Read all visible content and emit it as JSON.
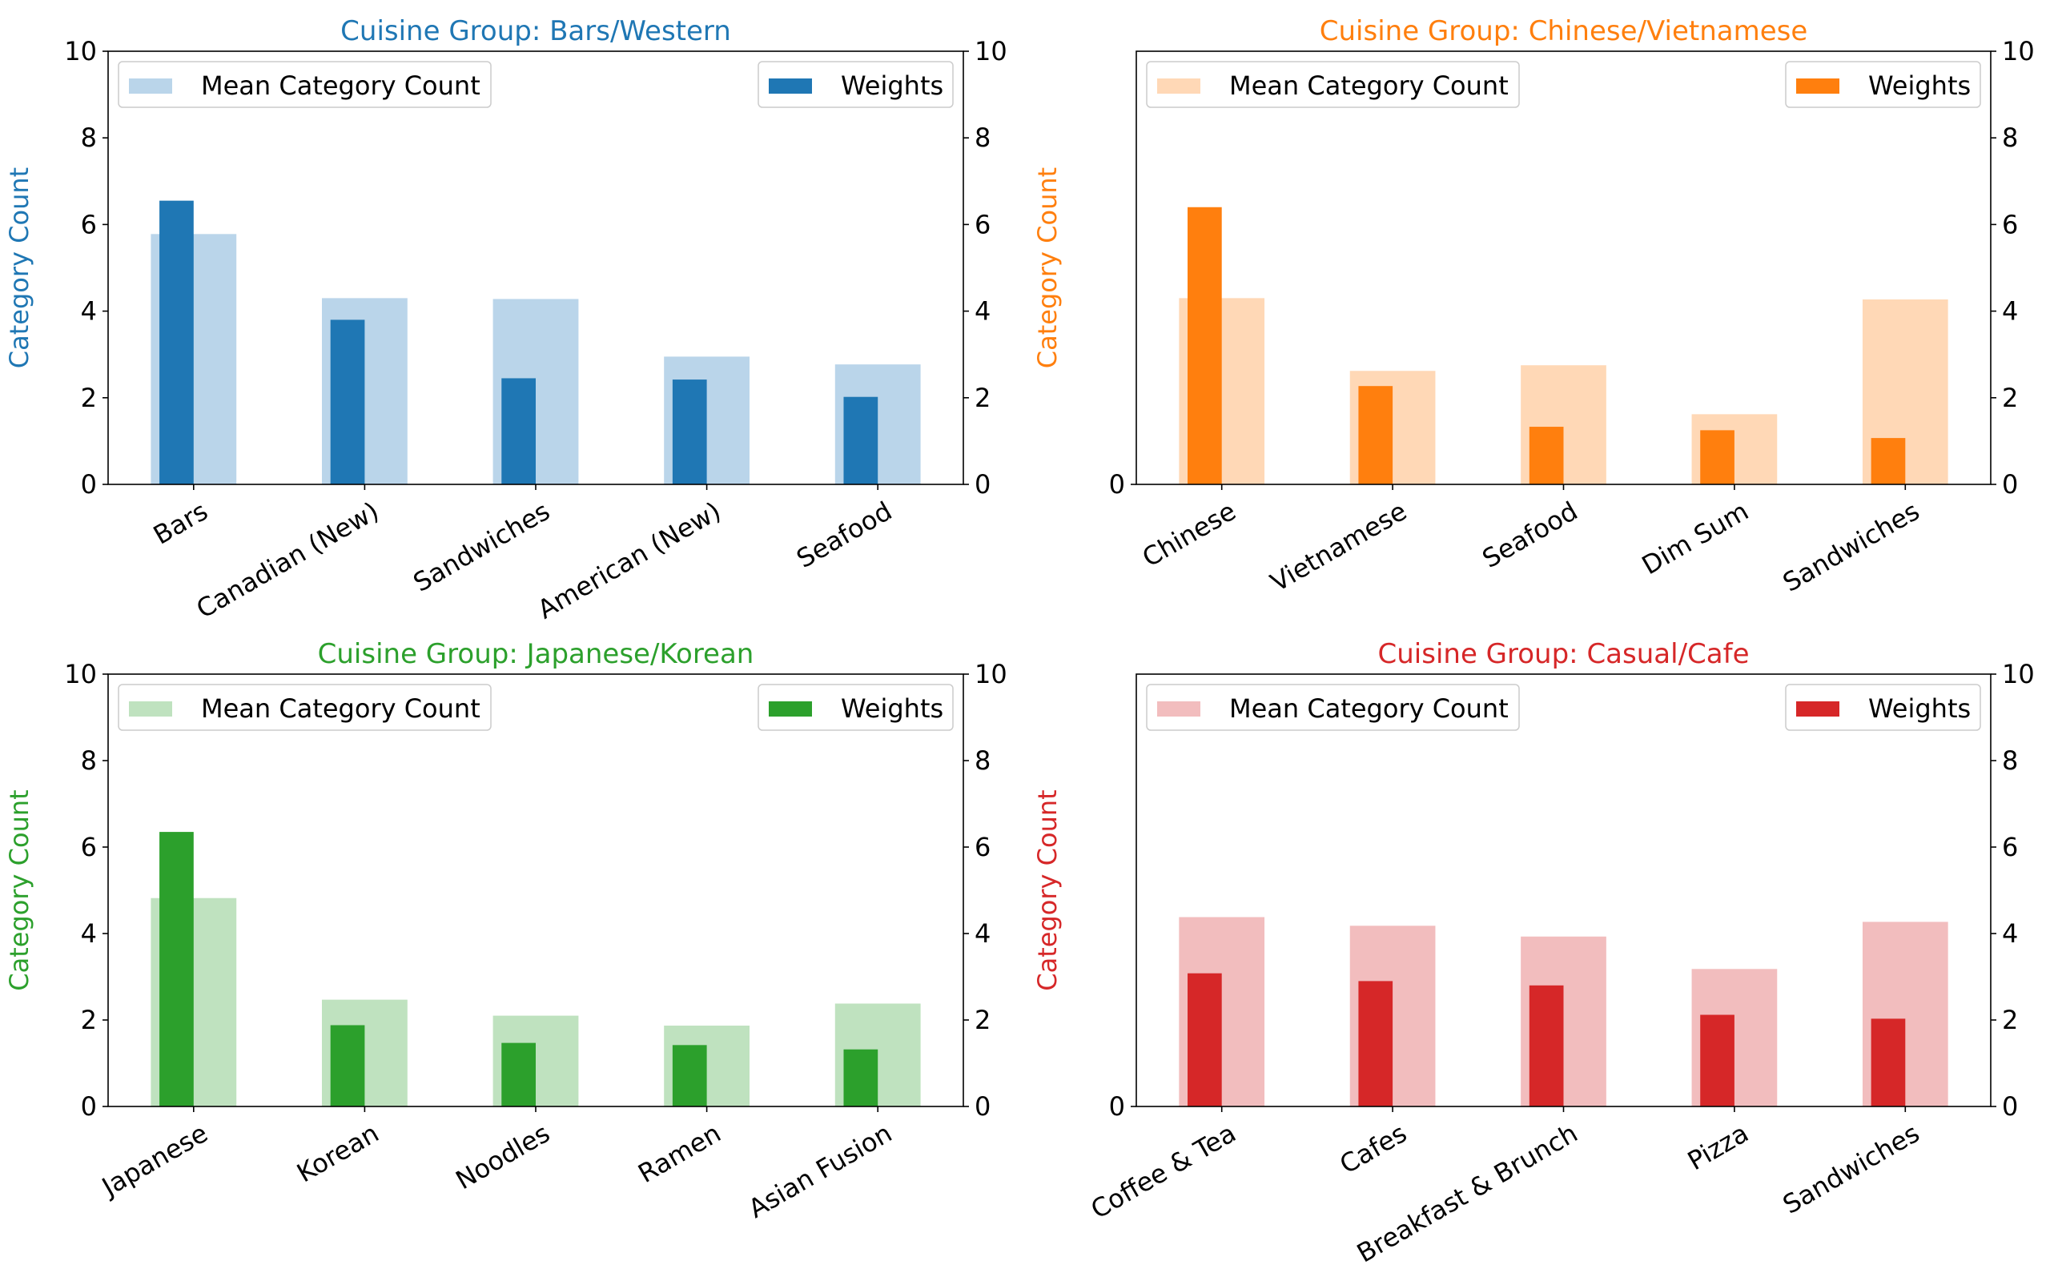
{
  "chart_data": [
    {
      "type": "bar",
      "title": "Cuisine Group: Bars/Western",
      "color": "#1f77b4",
      "light_color": "#bad5ea",
      "ylabel": "Category Count",
      "ylim": [
        0,
        10
      ],
      "yticks": [
        0,
        2,
        4,
        6,
        8,
        10
      ],
      "left_ticks_shown": true,
      "categories": [
        "Bars",
        "Canadian (New)",
        "Sandwiches",
        "American (New)",
        "Seafood"
      ],
      "series": [
        {
          "name": "Mean Category Count",
          "values": [
            5.78,
            4.3,
            4.28,
            2.95,
            2.77
          ]
        },
        {
          "name": "Weights",
          "values": [
            6.55,
            3.8,
            2.45,
            2.42,
            2.02
          ]
        }
      ],
      "legend": {
        "left": "top-left",
        "right": "top-right"
      },
      "grid": false
    },
    {
      "type": "bar",
      "title": "Cuisine Group: Chinese/Vietnamese",
      "color": "#ff7f0e",
      "light_color": "#ffd8b6",
      "ylabel": "Category Count",
      "ylim": [
        0,
        10
      ],
      "yticks": [
        0,
        2,
        4,
        6,
        8,
        10
      ],
      "left_ticks_shown": false,
      "categories": [
        "Chinese",
        "Vietnamese",
        "Seafood",
        "Dim Sum",
        "Sandwiches"
      ],
      "series": [
        {
          "name": "Mean Category Count",
          "values": [
            4.3,
            2.62,
            2.75,
            1.62,
            4.27
          ]
        },
        {
          "name": "Weights",
          "values": [
            6.4,
            2.27,
            1.33,
            1.25,
            1.07
          ]
        }
      ],
      "legend": {
        "left": "top-left",
        "right": "top-right"
      },
      "grid": false
    },
    {
      "type": "bar",
      "title": "Cuisine Group: Japanese/Korean",
      "color": "#2ca02c",
      "light_color": "#bfe2bf",
      "ylabel": "Category Count",
      "ylim": [
        0,
        10
      ],
      "yticks": [
        0,
        2,
        4,
        6,
        8,
        10
      ],
      "left_ticks_shown": true,
      "categories": [
        "Japanese",
        "Korean",
        "Noodles",
        "Ramen",
        "Asian Fusion"
      ],
      "series": [
        {
          "name": "Mean Category Count",
          "values": [
            4.82,
            2.47,
            2.1,
            1.87,
            2.38
          ]
        },
        {
          "name": "Weights",
          "values": [
            6.35,
            1.88,
            1.47,
            1.42,
            1.32
          ]
        }
      ],
      "legend": {
        "left": "top-left",
        "right": "top-right"
      },
      "grid": false
    },
    {
      "type": "bar",
      "title": "Cuisine Group: Casual/Cafe",
      "color": "#d62728",
      "light_color": "#f2bdbe",
      "ylabel": "Category Count",
      "ylim": [
        0,
        10
      ],
      "yticks": [
        0,
        2,
        4,
        6,
        8,
        10
      ],
      "left_ticks_shown": false,
      "categories": [
        "Coffee & Tea",
        "Cafes",
        "Breakfast & Brunch",
        "Pizza",
        "Sandwiches"
      ],
      "series": [
        {
          "name": "Mean Category Count",
          "values": [
            4.38,
            4.18,
            3.93,
            3.18,
            4.27
          ]
        },
        {
          "name": "Weights",
          "values": [
            3.08,
            2.9,
            2.8,
            2.12,
            2.03
          ]
        }
      ],
      "legend": {
        "left": "top-left",
        "right": "top-right"
      },
      "grid": false
    }
  ]
}
